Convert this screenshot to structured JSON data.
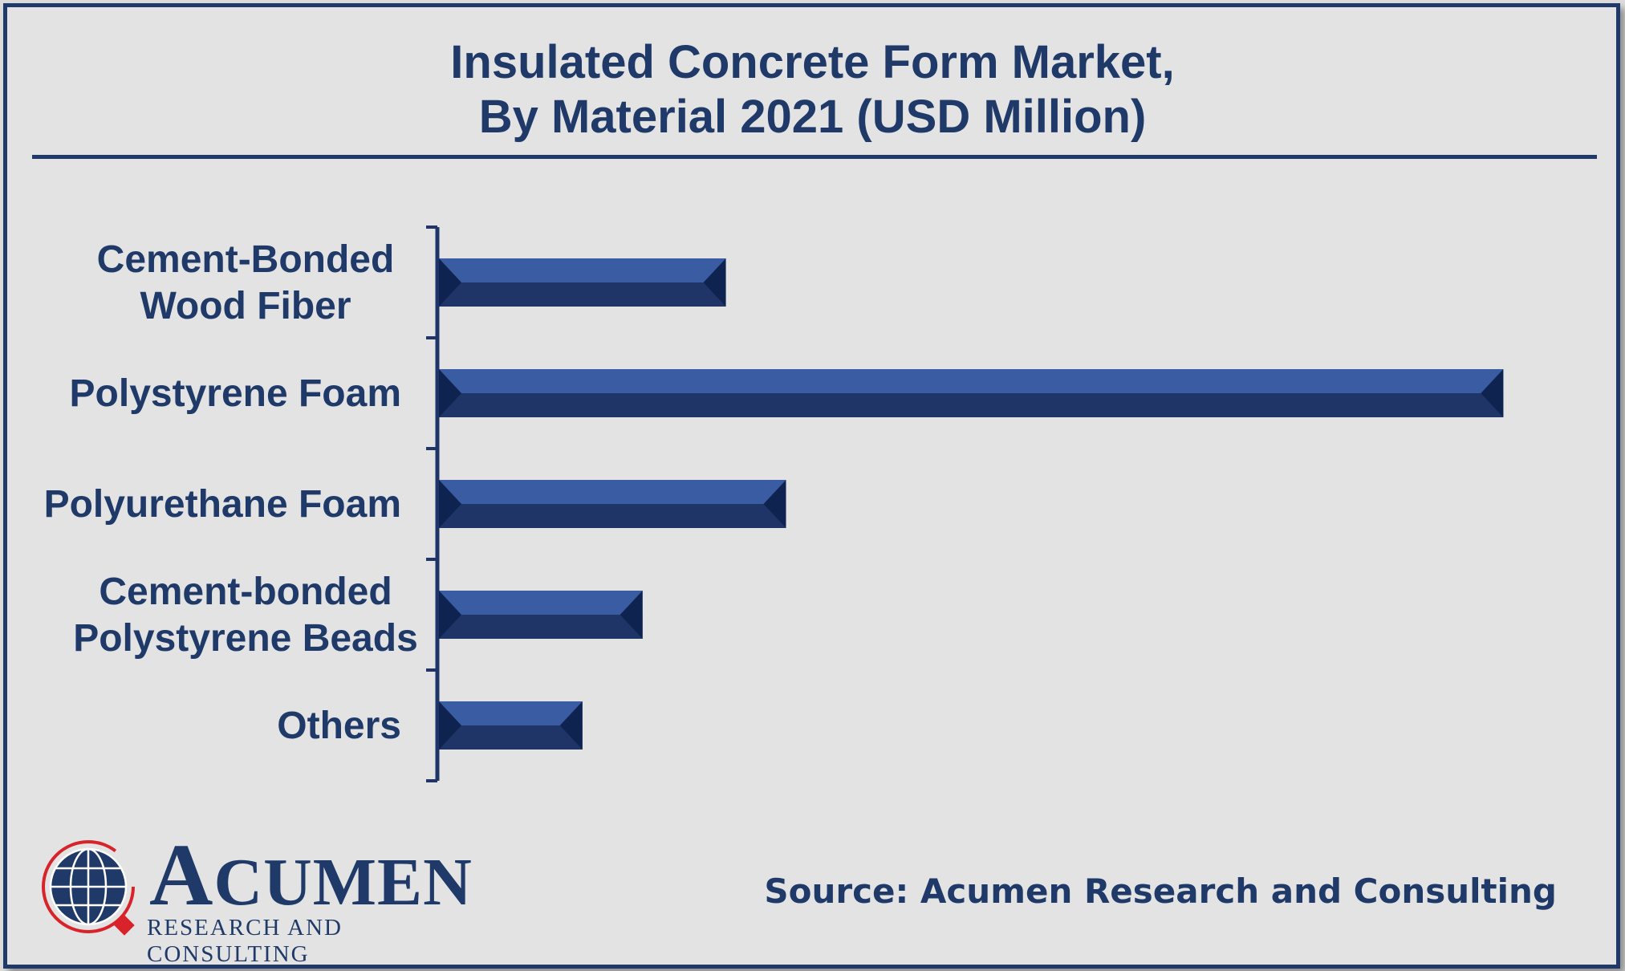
{
  "title": {
    "line1": "Insulated Concrete Form Market,",
    "line2": "By Material 2021 (USD Million)"
  },
  "chart_data": {
    "type": "bar",
    "orientation": "horizontal",
    "title": "Insulated Concrete Form Market, By Material 2021 (USD Million)",
    "categories": [
      [
        "Cement-Bonded",
        "Wood Fiber"
      ],
      [
        "Polystyrene Foam"
      ],
      [
        "Polyurethane Foam"
      ],
      [
        "Cement-bonded",
        "Polystyrene Beads"
      ],
      [
        "Others"
      ]
    ],
    "values": [
      310,
      1150,
      375,
      220,
      155
    ],
    "xlim": [
      0,
      1500
    ],
    "grid": false,
    "legend": "none",
    "bar_color": "#3a5ca3",
    "bar_dark_color": "#1f3567"
  },
  "logo": {
    "word_first": "A",
    "word_rest": "CUMEN",
    "subtitle": "RESEARCH AND CONSULTING"
  },
  "source": "Source: Acumen Research and Consulting",
  "colors": {
    "primary": "#1f3a68",
    "accent_red": "#d8232a",
    "background": "#e3e3e3"
  }
}
